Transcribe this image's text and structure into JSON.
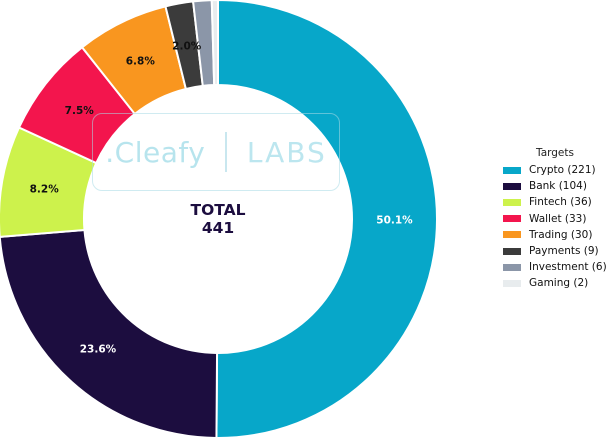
{
  "chart_data": {
    "type": "pie",
    "donut": true,
    "center_label": {
      "line1": "TOTAL",
      "line2": "441"
    },
    "slices": [
      {
        "name": "Crypto",
        "count": 221,
        "percent": 50.1,
        "label": "50.1%",
        "color": "#07a7c9"
      },
      {
        "name": "Bank",
        "count": 104,
        "percent": 23.6,
        "label": "23.6%",
        "color": "#1c0d3f"
      },
      {
        "name": "Fintech",
        "count": 36,
        "percent": 8.2,
        "label": "8.2%",
        "color": "#cdf24c"
      },
      {
        "name": "Wallet",
        "count": 33,
        "percent": 7.5,
        "label": "7.5%",
        "color": "#f3154d"
      },
      {
        "name": "Trading",
        "count": 30,
        "percent": 6.8,
        "label": "6.8%",
        "color": "#f9961f"
      },
      {
        "name": "Payments",
        "count": 9,
        "percent": 2.0,
        "label": "2.0%",
        "color": "#3b3b3b"
      },
      {
        "name": "Investment",
        "count": 6,
        "percent": 1.4,
        "label": "",
        "color": "#8b96a8"
      },
      {
        "name": "Gaming",
        "count": 2,
        "percent": 0.5,
        "label": "",
        "color": "#e8ecee"
      }
    ],
    "legend": {
      "title": "Targets",
      "placement": "right",
      "entries": [
        "Crypto (221)",
        "Bank (104)",
        "Fintech (36)",
        "Wallet (33)",
        "Trading (30)",
        "Payments (9)",
        "Investment (6)",
        "Gaming (2)"
      ]
    }
  },
  "watermark": {
    "logo_text": ".Cleafy",
    "labs_text": "LABS"
  }
}
